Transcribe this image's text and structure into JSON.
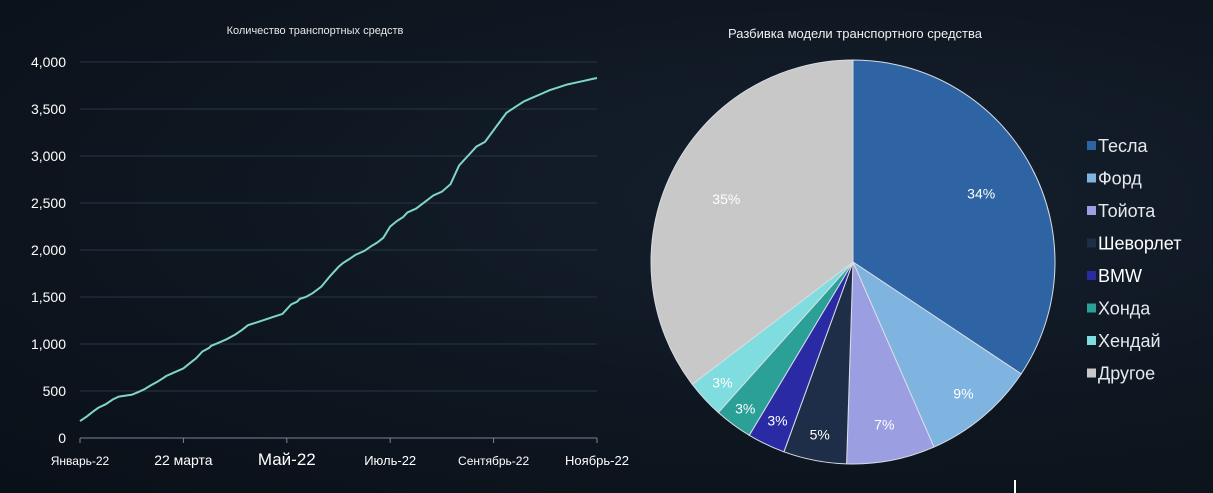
{
  "chart_data": [
    {
      "type": "line",
      "title": "Количество транспортных средств",
      "xlabel": "",
      "ylabel": "",
      "ylim": [
        0,
        4000
      ],
      "yticks": [
        "0",
        "500",
        "1,000",
        "1,500",
        "2,000",
        "2,500",
        "3,000",
        "3,500",
        "4,000"
      ],
      "ytick_values": [
        0,
        500,
        1000,
        1500,
        2000,
        2500,
        3000,
        3500,
        4000
      ],
      "xticks": [
        "Январь-22",
        "22 марта",
        "Май-22",
        "Июль-22",
        "Сентябрь-22",
        "Ноябрь-22"
      ],
      "x_days": [
        0,
        8,
        15,
        21,
        30,
        38,
        45,
        52,
        60,
        68,
        75,
        82,
        90,
        97,
        100,
        110,
        120,
        128,
        135,
        142,
        150,
        152,
        160,
        170,
        180,
        188,
        195,
        205,
        215,
        225,
        235,
        245,
        252,
        255,
        262,
        270,
        280,
        290,
        300,
        305,
        312,
        320,
        330,
        338,
        345,
        352,
        360,
        368,
        375,
        380,
        390,
        400,
        410,
        420,
        430,
        435,
        440,
        450,
        455,
        460,
        470,
        478,
        486,
        495,
        505,
        515,
        525,
        535,
        545,
        555,
        565,
        575,
        585,
        595,
        600
      ],
      "series": [
        {
          "name": "Количество транспортных средств",
          "color": "#7fd6c6",
          "values": [
            180,
            230,
            280,
            320,
            360,
            410,
            440,
            450,
            460,
            490,
            520,
            560,
            600,
            640,
            660,
            700,
            740,
            800,
            850,
            920,
            960,
            980,
            1010,
            1050,
            1100,
            1150,
            1200,
            1230,
            1260,
            1290,
            1320,
            1420,
            1450,
            1480,
            1500,
            1540,
            1610,
            1720,
            1820,
            1860,
            1900,
            1950,
            1990,
            2040,
            2080,
            2130,
            2250,
            2310,
            2350,
            2400,
            2440,
            2510,
            2580,
            2620,
            2700,
            2800,
            2900,
            3000,
            3050,
            3100,
            3150,
            3250,
            3350,
            3460,
            3520,
            3580,
            3620,
            3660,
            3700,
            3730,
            3760,
            3780,
            3800,
            3820,
            3830
          ]
        }
      ]
    },
    {
      "type": "pie",
      "title": "Разбивка модели транспортного средства",
      "legend_position": "right",
      "slices": [
        {
          "label": "Тесла",
          "value": 34,
          "display": "34%",
          "color": "#2e64a3"
        },
        {
          "label": "Форд",
          "value": 9,
          "display": "9%",
          "color": "#7fb3e0"
        },
        {
          "label": "Тойота",
          "value": 7,
          "display": "7%",
          "color": "#9c9ee2"
        },
        {
          "label": "Шеворлет",
          "value": 5,
          "display": "5%",
          "color": "#1f2e48"
        },
        {
          "label": "BMW",
          "value": 3,
          "display": "3%",
          "color": "#2b2aa5"
        },
        {
          "label": "Хонда",
          "value": 3,
          "display": "3%",
          "color": "#2aa096"
        },
        {
          "label": "Хендай",
          "value": 3,
          "display": "3%",
          "color": "#7fdde0"
        },
        {
          "label": "Другое",
          "value": 35,
          "display": "35%",
          "color": "#c8c8c8"
        }
      ]
    }
  ]
}
